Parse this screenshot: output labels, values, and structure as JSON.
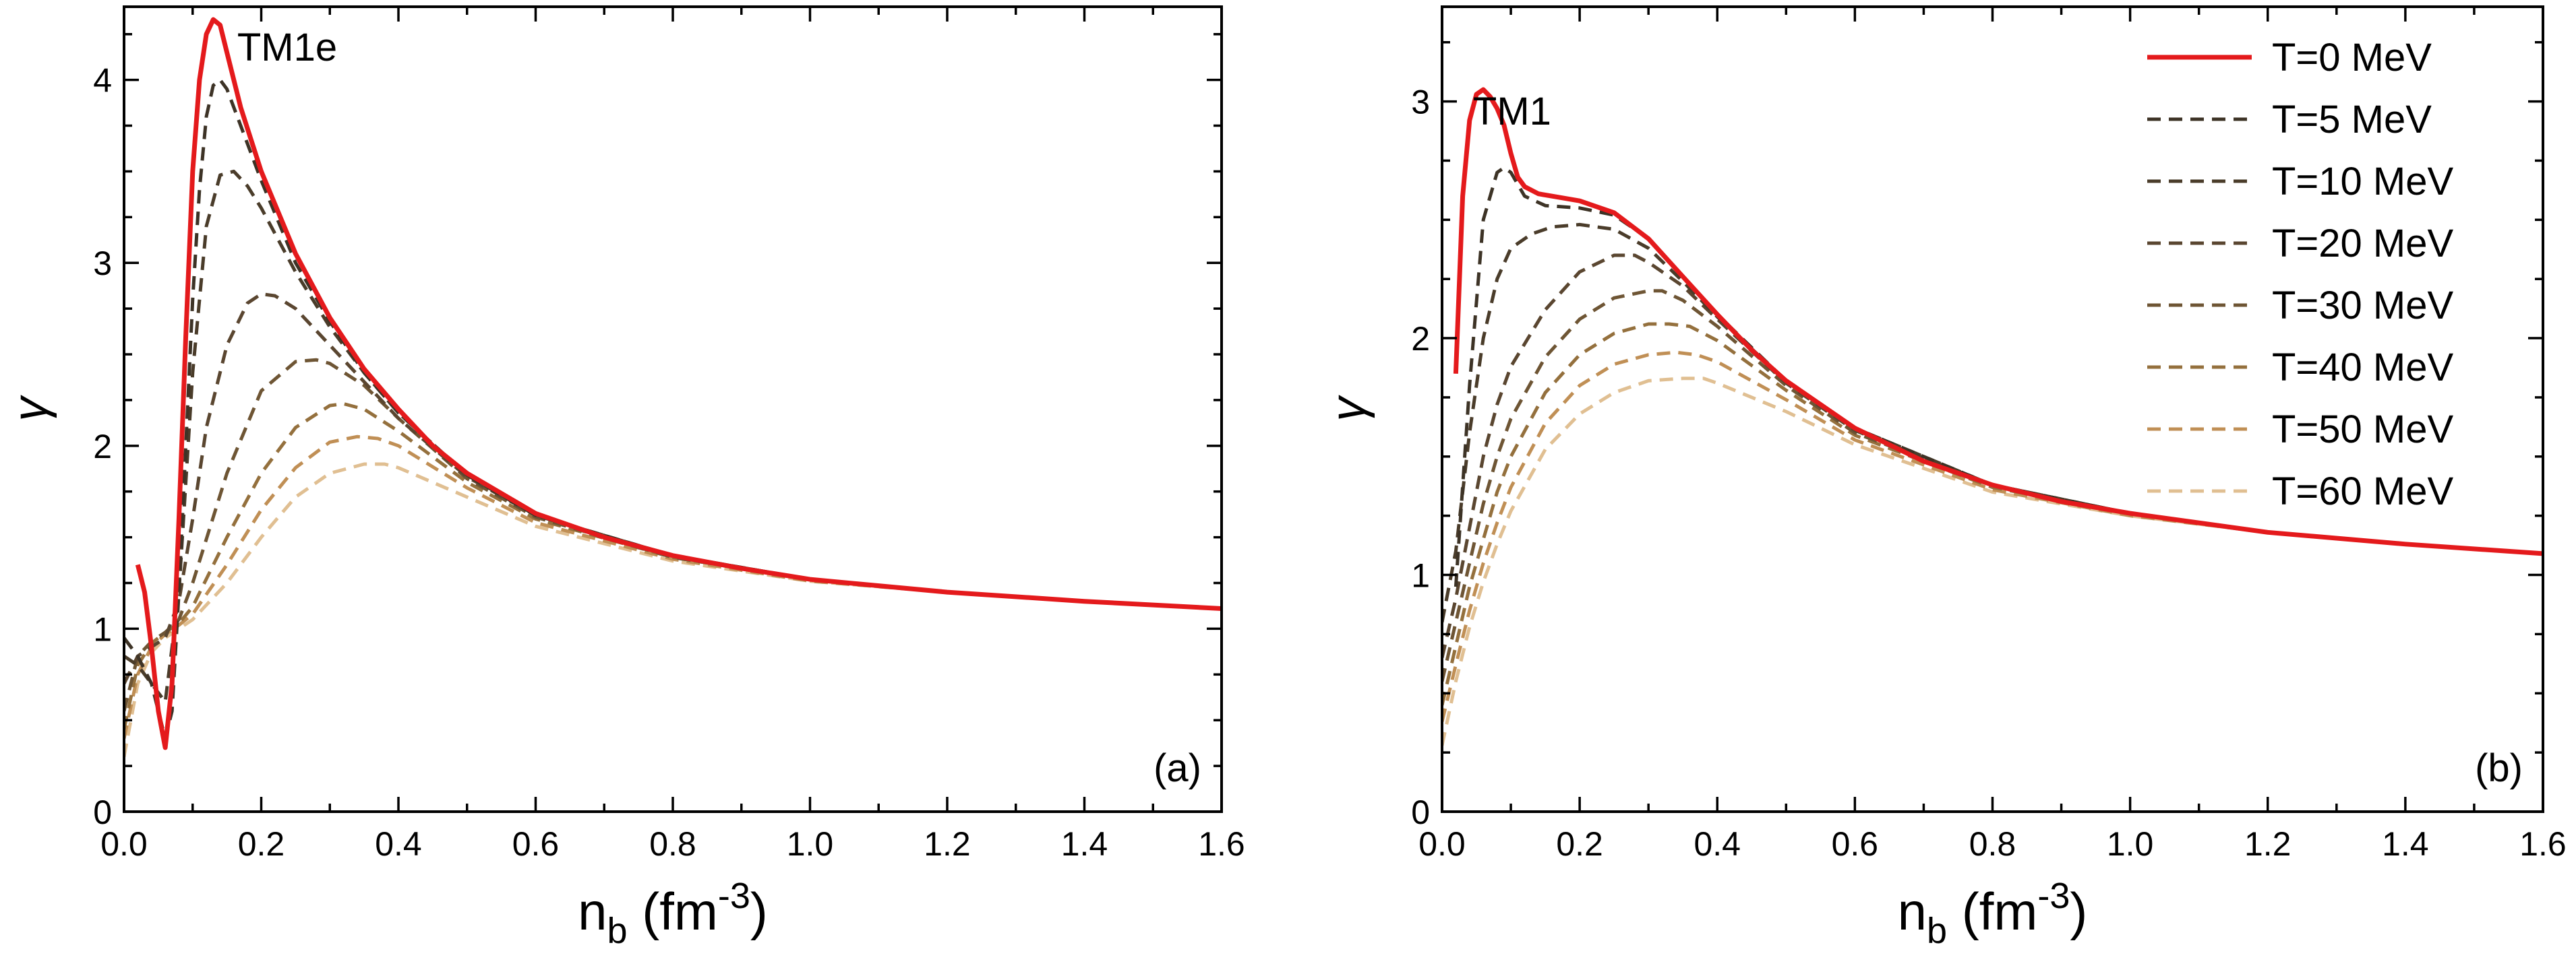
{
  "chart_data": [
    {
      "type": "line",
      "panel_label": "TM1e",
      "panel_tag": "(a)",
      "xlabel_main": "n",
      "xlabel_sub": "b",
      "xlabel_unit": " (fm",
      "xlabel_exp": "-3",
      "xlabel_close": ")",
      "ylabel": "γ",
      "xlim": [
        0.0,
        1.6
      ],
      "ylim": [
        0,
        4.4
      ],
      "xticks": [
        "0.0",
        "0.2",
        "0.4",
        "0.6",
        "0.8",
        "1.0",
        "1.2",
        "1.4",
        "1.6"
      ],
      "yticks": [
        "0",
        "1",
        "2",
        "3",
        "4"
      ],
      "grid": false,
      "series": [
        {
          "name": "T=0 MeV",
          "color": "#e41a1c",
          "dashed": false,
          "x": [
            0.02,
            0.03,
            0.04,
            0.05,
            0.06,
            0.07,
            0.08,
            0.09,
            0.1,
            0.11,
            0.12,
            0.13,
            0.14,
            0.15,
            0.17,
            0.2,
            0.25,
            0.3,
            0.35,
            0.4,
            0.45,
            0.5,
            0.6,
            0.7,
            0.8,
            0.9,
            1.0,
            1.2,
            1.4,
            1.6
          ],
          "y": [
            1.35,
            1.2,
            0.9,
            0.55,
            0.35,
            0.7,
            1.6,
            2.6,
            3.5,
            4.0,
            4.25,
            4.33,
            4.3,
            4.15,
            3.85,
            3.5,
            3.05,
            2.7,
            2.42,
            2.2,
            2.0,
            1.85,
            1.63,
            1.5,
            1.4,
            1.33,
            1.27,
            1.2,
            1.15,
            1.11
          ]
        },
        {
          "name": "T=5 MeV",
          "color": "#3d3326",
          "dashed": true,
          "x": [
            0.0,
            0.02,
            0.04,
            0.06,
            0.07,
            0.08,
            0.09,
            0.1,
            0.11,
            0.12,
            0.13,
            0.14,
            0.15,
            0.17,
            0.2,
            0.25,
            0.3,
            0.35,
            0.4,
            0.5,
            0.6,
            0.8,
            1.0,
            1.2,
            1.4,
            1.6
          ],
          "y": [
            0.95,
            0.85,
            0.7,
            0.4,
            0.55,
            1.2,
            2.0,
            2.8,
            3.4,
            3.8,
            3.97,
            4.0,
            3.95,
            3.75,
            3.45,
            3.0,
            2.68,
            2.4,
            2.18,
            1.84,
            1.62,
            1.4,
            1.27,
            1.2,
            1.15,
            1.11
          ]
        },
        {
          "name": "T=10 MeV",
          "color": "#4a3c2a",
          "dashed": true,
          "x": [
            0.0,
            0.02,
            0.04,
            0.06,
            0.08,
            0.1,
            0.12,
            0.14,
            0.16,
            0.18,
            0.2,
            0.25,
            0.3,
            0.35,
            0.4,
            0.5,
            0.6,
            0.8,
            1.0,
            1.2,
            1.4,
            1.6
          ],
          "y": [
            0.85,
            0.8,
            0.7,
            0.6,
            1.2,
            2.4,
            3.2,
            3.48,
            3.5,
            3.42,
            3.3,
            2.95,
            2.65,
            2.4,
            2.18,
            1.84,
            1.62,
            1.4,
            1.27,
            1.2,
            1.15,
            1.11
          ]
        },
        {
          "name": "T=20 MeV",
          "color": "#5a4630",
          "dashed": true,
          "x": [
            0.0,
            0.02,
            0.04,
            0.06,
            0.08,
            0.1,
            0.12,
            0.15,
            0.18,
            0.2,
            0.22,
            0.25,
            0.3,
            0.35,
            0.4,
            0.5,
            0.6,
            0.8,
            1.0,
            1.2,
            1.4,
            1.6
          ],
          "y": [
            0.7,
            0.85,
            0.9,
            0.95,
            1.15,
            1.6,
            2.1,
            2.55,
            2.78,
            2.83,
            2.82,
            2.75,
            2.55,
            2.35,
            2.15,
            1.83,
            1.62,
            1.4,
            1.27,
            1.2,
            1.15,
            1.11
          ]
        },
        {
          "name": "T=30 MeV",
          "color": "#6e5534",
          "dashed": true,
          "x": [
            0.0,
            0.02,
            0.04,
            0.06,
            0.08,
            0.1,
            0.15,
            0.2,
            0.25,
            0.28,
            0.3,
            0.35,
            0.4,
            0.5,
            0.6,
            0.8,
            1.0,
            1.2,
            1.4,
            1.6
          ],
          "y": [
            0.55,
            0.85,
            0.93,
            0.98,
            1.05,
            1.25,
            1.85,
            2.3,
            2.46,
            2.47,
            2.45,
            2.33,
            2.15,
            1.82,
            1.61,
            1.39,
            1.27,
            1.2,
            1.15,
            1.11
          ]
        },
        {
          "name": "T=40 MeV",
          "color": "#94703d",
          "dashed": true,
          "x": [
            0.0,
            0.02,
            0.04,
            0.06,
            0.08,
            0.1,
            0.15,
            0.2,
            0.25,
            0.3,
            0.32,
            0.35,
            0.4,
            0.5,
            0.6,
            0.8,
            1.0,
            1.2,
            1.4,
            1.6
          ],
          "y": [
            0.45,
            0.8,
            0.92,
            0.98,
            1.03,
            1.12,
            1.5,
            1.85,
            2.1,
            2.22,
            2.23,
            2.2,
            2.08,
            1.8,
            1.6,
            1.39,
            1.27,
            1.2,
            1.15,
            1.11
          ]
        },
        {
          "name": "T=50 MeV",
          "color": "#c08f55",
          "dashed": true,
          "x": [
            0.0,
            0.02,
            0.04,
            0.06,
            0.08,
            0.1,
            0.15,
            0.2,
            0.25,
            0.3,
            0.34,
            0.37,
            0.4,
            0.5,
            0.6,
            0.8,
            1.0,
            1.2,
            1.4,
            1.6
          ],
          "y": [
            0.4,
            0.75,
            0.9,
            0.97,
            1.02,
            1.08,
            1.35,
            1.65,
            1.88,
            2.02,
            2.05,
            2.04,
            2.0,
            1.77,
            1.58,
            1.38,
            1.26,
            1.2,
            1.15,
            1.11
          ]
        },
        {
          "name": "T=60 MeV",
          "color": "#e0bf92",
          "dashed": true,
          "x": [
            0.0,
            0.02,
            0.04,
            0.06,
            0.08,
            0.1,
            0.15,
            0.2,
            0.25,
            0.3,
            0.35,
            0.38,
            0.4,
            0.5,
            0.6,
            0.8,
            1.0,
            1.2,
            1.4,
            1.6
          ],
          "y": [
            0.3,
            0.7,
            0.87,
            0.95,
            1.0,
            1.05,
            1.25,
            1.5,
            1.72,
            1.85,
            1.9,
            1.9,
            1.88,
            1.72,
            1.56,
            1.37,
            1.26,
            1.2,
            1.15,
            1.11
          ]
        }
      ]
    },
    {
      "type": "line",
      "panel_label": "TM1",
      "panel_tag": "(b)",
      "xlabel_main": "n",
      "xlabel_sub": "b",
      "xlabel_unit": " (fm",
      "xlabel_exp": "-3",
      "xlabel_close": ")",
      "ylabel": "γ",
      "xlim": [
        0.0,
        1.6
      ],
      "ylim": [
        0,
        3.4
      ],
      "xticks": [
        "0.0",
        "0.2",
        "0.4",
        "0.6",
        "0.8",
        "1.0",
        "1.2",
        "1.4",
        "1.6"
      ],
      "yticks": [
        "0",
        "1",
        "2",
        "3"
      ],
      "grid": false,
      "legend_position": "top-right",
      "series": [
        {
          "name": "T=0 MeV",
          "color": "#e41a1c",
          "dashed": false,
          "x": [
            0.02,
            0.03,
            0.04,
            0.05,
            0.06,
            0.07,
            0.08,
            0.09,
            0.1,
            0.11,
            0.12,
            0.14,
            0.16,
            0.2,
            0.25,
            0.3,
            0.35,
            0.4,
            0.45,
            0.5,
            0.6,
            0.7,
            0.8,
            0.9,
            1.0,
            1.2,
            1.4,
            1.6
          ],
          "y": [
            1.85,
            2.6,
            2.92,
            3.03,
            3.05,
            3.02,
            2.97,
            2.9,
            2.78,
            2.68,
            2.64,
            2.61,
            2.6,
            2.58,
            2.53,
            2.42,
            2.26,
            2.1,
            1.95,
            1.82,
            1.62,
            1.48,
            1.38,
            1.31,
            1.26,
            1.18,
            1.13,
            1.09
          ]
        },
        {
          "name": "T=5 MeV",
          "color": "#3d3326",
          "dashed": true,
          "x": [
            0.02,
            0.04,
            0.06,
            0.08,
            0.09,
            0.1,
            0.12,
            0.15,
            0.2,
            0.25,
            0.3,
            0.35,
            0.4,
            0.5,
            0.6,
            0.8,
            1.0,
            1.2,
            1.4,
            1.6
          ],
          "y": [
            0.95,
            1.8,
            2.5,
            2.7,
            2.72,
            2.7,
            2.6,
            2.56,
            2.55,
            2.52,
            2.42,
            2.26,
            2.1,
            1.82,
            1.62,
            1.38,
            1.26,
            1.18,
            1.13,
            1.09
          ]
        },
        {
          "name": "T=10 MeV",
          "color": "#4a3c2a",
          "dashed": true,
          "x": [
            0.0,
            0.02,
            0.04,
            0.06,
            0.08,
            0.1,
            0.13,
            0.16,
            0.2,
            0.25,
            0.3,
            0.35,
            0.4,
            0.5,
            0.6,
            0.8,
            1.0,
            1.2,
            1.4,
            1.6
          ],
          "y": [
            0.8,
            1.1,
            1.6,
            2.0,
            2.25,
            2.38,
            2.44,
            2.47,
            2.48,
            2.46,
            2.38,
            2.24,
            2.09,
            1.82,
            1.62,
            1.38,
            1.26,
            1.18,
            1.13,
            1.09
          ]
        },
        {
          "name": "T=20 MeV",
          "color": "#5a4630",
          "dashed": true,
          "x": [
            0.0,
            0.02,
            0.04,
            0.06,
            0.08,
            0.1,
            0.15,
            0.2,
            0.25,
            0.28,
            0.3,
            0.35,
            0.4,
            0.5,
            0.6,
            0.8,
            1.0,
            1.2,
            1.4,
            1.6
          ],
          "y": [
            0.65,
            0.9,
            1.2,
            1.5,
            1.72,
            1.88,
            2.12,
            2.28,
            2.35,
            2.35,
            2.32,
            2.22,
            2.08,
            1.81,
            1.61,
            1.38,
            1.26,
            1.18,
            1.13,
            1.09
          ]
        },
        {
          "name": "T=30 MeV",
          "color": "#6e5534",
          "dashed": true,
          "x": [
            0.0,
            0.02,
            0.04,
            0.06,
            0.08,
            0.1,
            0.15,
            0.2,
            0.25,
            0.3,
            0.32,
            0.35,
            0.4,
            0.5,
            0.6,
            0.8,
            1.0,
            1.2,
            1.4,
            1.6
          ],
          "y": [
            0.55,
            0.8,
            1.05,
            1.3,
            1.5,
            1.66,
            1.92,
            2.08,
            2.17,
            2.2,
            2.2,
            2.16,
            2.05,
            1.8,
            1.6,
            1.38,
            1.26,
            1.18,
            1.13,
            1.09
          ]
        },
        {
          "name": "T=40 MeV",
          "color": "#94703d",
          "dashed": true,
          "x": [
            0.0,
            0.02,
            0.04,
            0.06,
            0.08,
            0.1,
            0.15,
            0.2,
            0.25,
            0.3,
            0.33,
            0.36,
            0.4,
            0.5,
            0.6,
            0.8,
            1.0,
            1.2,
            1.4,
            1.6
          ],
          "y": [
            0.45,
            0.7,
            0.95,
            1.15,
            1.35,
            1.5,
            1.77,
            1.93,
            2.02,
            2.06,
            2.06,
            2.05,
            1.99,
            1.78,
            1.59,
            1.37,
            1.26,
            1.18,
            1.13,
            1.09
          ]
        },
        {
          "name": "T=50 MeV",
          "color": "#c08f55",
          "dashed": true,
          "x": [
            0.0,
            0.02,
            0.04,
            0.06,
            0.08,
            0.1,
            0.15,
            0.2,
            0.25,
            0.3,
            0.34,
            0.37,
            0.4,
            0.5,
            0.6,
            0.8,
            1.0,
            1.2,
            1.4,
            1.6
          ],
          "y": [
            0.38,
            0.62,
            0.85,
            1.05,
            1.22,
            1.37,
            1.64,
            1.8,
            1.89,
            1.93,
            1.94,
            1.93,
            1.9,
            1.74,
            1.57,
            1.36,
            1.25,
            1.18,
            1.13,
            1.09
          ]
        },
        {
          "name": "T=60 MeV",
          "color": "#e0bf92",
          "dashed": true,
          "x": [
            0.0,
            0.02,
            0.04,
            0.06,
            0.08,
            0.1,
            0.15,
            0.2,
            0.25,
            0.3,
            0.35,
            0.38,
            0.4,
            0.5,
            0.6,
            0.8,
            1.0,
            1.2,
            1.4,
            1.6
          ],
          "y": [
            0.28,
            0.55,
            0.78,
            0.97,
            1.13,
            1.27,
            1.53,
            1.68,
            1.77,
            1.82,
            1.83,
            1.83,
            1.81,
            1.69,
            1.55,
            1.35,
            1.25,
            1.18,
            1.13,
            1.09
          ]
        }
      ]
    }
  ]
}
